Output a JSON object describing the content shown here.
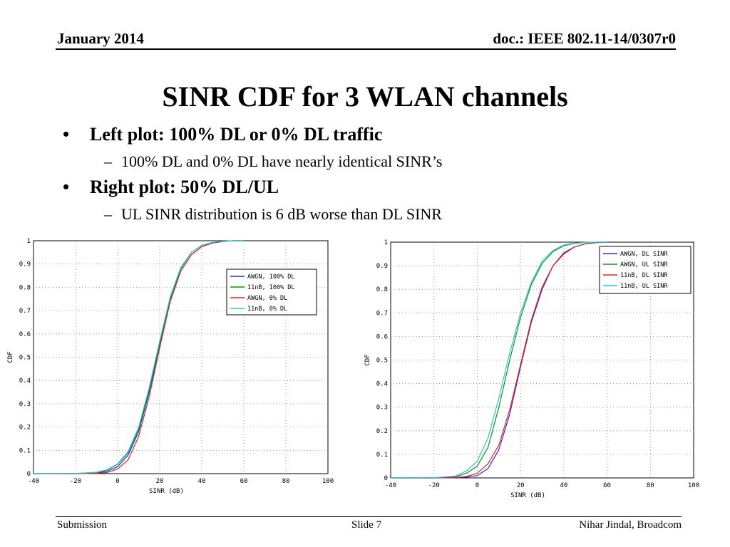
{
  "header": {
    "date": "January 2014",
    "doc": "doc.: IEEE 802.11-14/0307r0"
  },
  "title": "SINR CDF for 3 WLAN channels",
  "bullets": [
    {
      "text": "Left plot: 100% DL or 0% DL traffic",
      "sub": "100% DL and 0% DL have nearly identical SINR’s"
    },
    {
      "text": "Right plot: 50% DL/UL",
      "sub": "UL SINR distribution is 6 dB worse than DL SINR"
    }
  ],
  "chart_data": [
    {
      "type": "line",
      "xlabel": "SINR (dB)",
      "ylabel": "CDF",
      "xlim": [
        -40,
        100
      ],
      "ylim": [
        0,
        1
      ],
      "xticks": [
        "-40",
        "-20",
        "0",
        "20",
        "40",
        "60",
        "80",
        "100"
      ],
      "yticks": [
        "0",
        "0.1",
        "0.2",
        "0.3",
        "0.4",
        "0.5",
        "0.6",
        "0.7",
        "0.8",
        "0.9",
        "1"
      ],
      "grid": true,
      "legend_position": "top-right",
      "x": [
        -40,
        -20,
        -10,
        -5,
        0,
        5,
        10,
        15,
        20,
        25,
        30,
        35,
        40,
        45,
        50,
        55,
        60
      ],
      "series": [
        {
          "name": "AWGN, 100% DL",
          "color": "#2b2bd6",
          "values": [
            0,
            0,
            0.002,
            0.01,
            0.03,
            0.08,
            0.18,
            0.35,
            0.55,
            0.74,
            0.87,
            0.94,
            0.975,
            0.99,
            0.997,
            1.0,
            1.0
          ]
        },
        {
          "name": "11nB, 100% DL",
          "color": "#1a8c1a",
          "values": [
            0,
            0.001,
            0.005,
            0.015,
            0.04,
            0.09,
            0.19,
            0.36,
            0.56,
            0.75,
            0.88,
            0.95,
            0.98,
            0.993,
            0.998,
            1.0,
            1.0
          ]
        },
        {
          "name": "AWGN, 0% DL",
          "color": "#e02020",
          "values": [
            0,
            0,
            0.001,
            0.005,
            0.02,
            0.06,
            0.16,
            0.33,
            0.54,
            0.74,
            0.87,
            0.94,
            0.975,
            0.99,
            0.997,
            1.0,
            1.0
          ]
        },
        {
          "name": "11nB, 0% DL",
          "color": "#22c8d8",
          "values": [
            0,
            0.001,
            0.006,
            0.017,
            0.042,
            0.095,
            0.2,
            0.37,
            0.57,
            0.76,
            0.885,
            0.95,
            0.98,
            0.993,
            0.998,
            1.0,
            1.0
          ]
        }
      ]
    },
    {
      "type": "line",
      "xlabel": "SINR (dB)",
      "ylabel": "CDF",
      "xlim": [
        -40,
        100
      ],
      "ylim": [
        0,
        1
      ],
      "xticks": [
        "-40",
        "-20",
        "0",
        "20",
        "40",
        "60",
        "80",
        "100"
      ],
      "yticks": [
        "0",
        "0.1",
        "0.2",
        "0.3",
        "0.4",
        "0.5",
        "0.6",
        "0.7",
        "0.8",
        "0.9",
        "1"
      ],
      "grid": true,
      "legend_position": "top-right",
      "x": [
        -40,
        -20,
        -10,
        -5,
        0,
        5,
        10,
        15,
        20,
        25,
        30,
        35,
        40,
        45,
        50,
        55,
        60
      ],
      "series": [
        {
          "name": "AWGN, DL SINR",
          "color": "#2b2bd6",
          "values": [
            0,
            0,
            0.001,
            0.003,
            0.01,
            0.04,
            0.12,
            0.27,
            0.47,
            0.66,
            0.8,
            0.9,
            0.95,
            0.98,
            0.993,
            0.998,
            1.0
          ]
        },
        {
          "name": "AWGN, UL SINR",
          "color": "#1a8c1a",
          "values": [
            0,
            0,
            0.005,
            0.02,
            0.05,
            0.13,
            0.3,
            0.5,
            0.68,
            0.82,
            0.91,
            0.96,
            0.985,
            0.995,
            0.999,
            1.0,
            1.0
          ]
        },
        {
          "name": "11nB, DL SINR",
          "color": "#e02020",
          "values": [
            0,
            0,
            0.002,
            0.006,
            0.02,
            0.06,
            0.14,
            0.29,
            0.48,
            0.67,
            0.81,
            0.9,
            0.955,
            0.98,
            0.993,
            0.998,
            1.0
          ]
        },
        {
          "name": "11nB, UL SINR",
          "color": "#22c8d8",
          "values": [
            0,
            0.001,
            0.008,
            0.03,
            0.07,
            0.17,
            0.34,
            0.53,
            0.7,
            0.83,
            0.92,
            0.965,
            0.988,
            0.996,
            0.999,
            1.0,
            1.0
          ]
        }
      ]
    }
  ],
  "footer": {
    "left": "Submission",
    "center": "Slide 7",
    "right": "Nihar Jindal, Broadcom"
  }
}
